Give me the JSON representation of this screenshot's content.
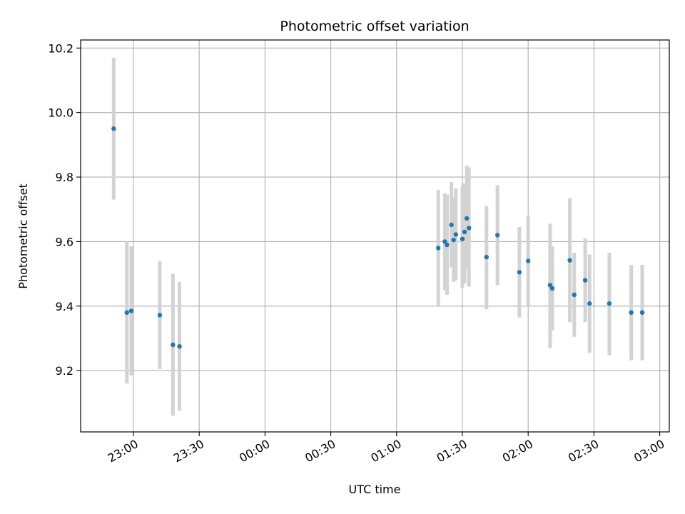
{
  "chart_data": {
    "type": "scatter",
    "title": "Photometric offset variation",
    "xlabel": "UTC time",
    "ylabel": "Photometric offset",
    "x_ticks": [
      "23:00",
      "23:30",
      "00:00",
      "00:30",
      "01:00",
      "01:30",
      "02:00",
      "02:30",
      "03:00"
    ],
    "y_ticks": [
      "9.2",
      "9.4",
      "9.6",
      "9.8",
      "10.0",
      "10.2"
    ],
    "ylim": [
      9.01,
      10.225
    ],
    "grid": true,
    "colors": {
      "marker": "#1f77b4",
      "errorbar": "#d3d3d3",
      "grid": "#b0b0b0"
    },
    "points": [
      {
        "t": "22:51",
        "y": 9.95,
        "lo": 9.73,
        "hi": 10.17
      },
      {
        "t": "22:57",
        "y": 9.38,
        "lo": 9.16,
        "hi": 9.6
      },
      {
        "t": "22:59",
        "y": 9.385,
        "lo": 9.185,
        "hi": 9.585
      },
      {
        "t": "23:12",
        "y": 9.372,
        "lo": 9.205,
        "hi": 9.54
      },
      {
        "t": "23:18",
        "y": 9.28,
        "lo": 9.06,
        "hi": 9.5
      },
      {
        "t": "23:21",
        "y": 9.275,
        "lo": 9.075,
        "hi": 9.475
      },
      {
        "t": "01:19",
        "y": 9.58,
        "lo": 9.4,
        "hi": 9.76
      },
      {
        "t": "01:22",
        "y": 9.6,
        "lo": 9.45,
        "hi": 9.75
      },
      {
        "t": "01:23",
        "y": 9.59,
        "lo": 9.435,
        "hi": 9.745
      },
      {
        "t": "01:25",
        "y": 9.652,
        "lo": 9.52,
        "hi": 9.785
      },
      {
        "t": "01:26",
        "y": 9.605,
        "lo": 9.475,
        "hi": 9.735
      },
      {
        "t": "01:27",
        "y": 9.622,
        "lo": 9.48,
        "hi": 9.765
      },
      {
        "t": "01:30",
        "y": 9.608,
        "lo": 9.455,
        "hi": 9.77
      },
      {
        "t": "01:31",
        "y": 9.63,
        "lo": 9.47,
        "hi": 9.78
      },
      {
        "t": "01:32",
        "y": 9.672,
        "lo": 9.515,
        "hi": 9.835
      },
      {
        "t": "01:33",
        "y": 9.642,
        "lo": 9.46,
        "hi": 9.83
      },
      {
        "t": "01:41",
        "y": 9.552,
        "lo": 9.39,
        "hi": 9.71
      },
      {
        "t": "01:46",
        "y": 9.62,
        "lo": 9.465,
        "hi": 9.775
      },
      {
        "t": "01:56",
        "y": 9.505,
        "lo": 9.365,
        "hi": 9.645
      },
      {
        "t": "02:00",
        "y": 9.54,
        "lo": 9.4,
        "hi": 9.68
      },
      {
        "t": "02:10",
        "y": 9.465,
        "lo": 9.27,
        "hi": 9.655
      },
      {
        "t": "02:11",
        "y": 9.455,
        "lo": 9.325,
        "hi": 9.585
      },
      {
        "t": "02:19",
        "y": 9.542,
        "lo": 9.35,
        "hi": 9.735
      },
      {
        "t": "02:21",
        "y": 9.435,
        "lo": 9.305,
        "hi": 9.565
      },
      {
        "t": "02:26",
        "y": 9.48,
        "lo": 9.35,
        "hi": 9.61
      },
      {
        "t": "02:28",
        "y": 9.408,
        "lo": 9.255,
        "hi": 9.56
      },
      {
        "t": "02:37",
        "y": 9.408,
        "lo": 9.248,
        "hi": 9.565
      },
      {
        "t": "02:47",
        "y": 9.38,
        "lo": 9.232,
        "hi": 9.528
      },
      {
        "t": "02:52",
        "y": 9.38,
        "lo": 9.232,
        "hi": 9.528
      }
    ]
  }
}
